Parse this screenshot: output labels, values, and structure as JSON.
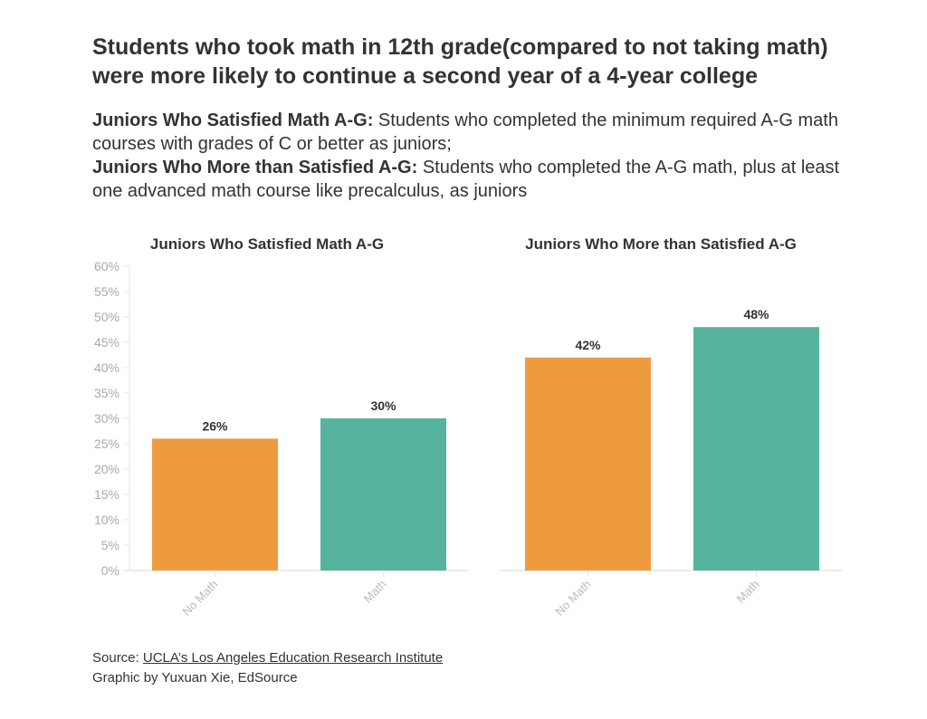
{
  "title": "Students who took math in 12th grade(compared to not taking math) were more likely to continue a second year of a 4-year college",
  "description": [
    {
      "term": "Juniors Who Satisfied Math A-G:",
      "text": " Students who completed the minimum required A-G math courses with grades of C or better as juniors;"
    },
    {
      "term": "Juniors Who More than Satisfied A-G:",
      "text": " Students who completed the A-G math, plus at least one advanced math course like precalculus, as juniors"
    }
  ],
  "footer": {
    "source_prefix": "Source: ",
    "source_link": "UCLA’s Los Angeles Education Research Institute",
    "credit": "Graphic by Yuxuan Xie, EdSource"
  },
  "colors": {
    "no_math": "#ee9b40",
    "math": "#56b39d"
  },
  "chart_data": [
    {
      "type": "bar",
      "title": "Juniors Who Satisfied Math A-G",
      "categories": [
        "No Math",
        "Math"
      ],
      "values": [
        26,
        30
      ],
      "labels": [
        "26%",
        "30%"
      ],
      "ylim": [
        0,
        60
      ],
      "yticks": [
        "0%",
        "5%",
        "10%",
        "15%",
        "20%",
        "25%",
        "30%",
        "35%",
        "40%",
        "45%",
        "50%",
        "55%",
        "60%"
      ],
      "grid": false
    },
    {
      "type": "bar",
      "title": "Juniors Who More than Satisfied A-G",
      "categories": [
        "No Math",
        "Math"
      ],
      "values": [
        42,
        48
      ],
      "labels": [
        "42%",
        "48%"
      ],
      "ylim": [
        0,
        60
      ],
      "grid": false
    }
  ]
}
